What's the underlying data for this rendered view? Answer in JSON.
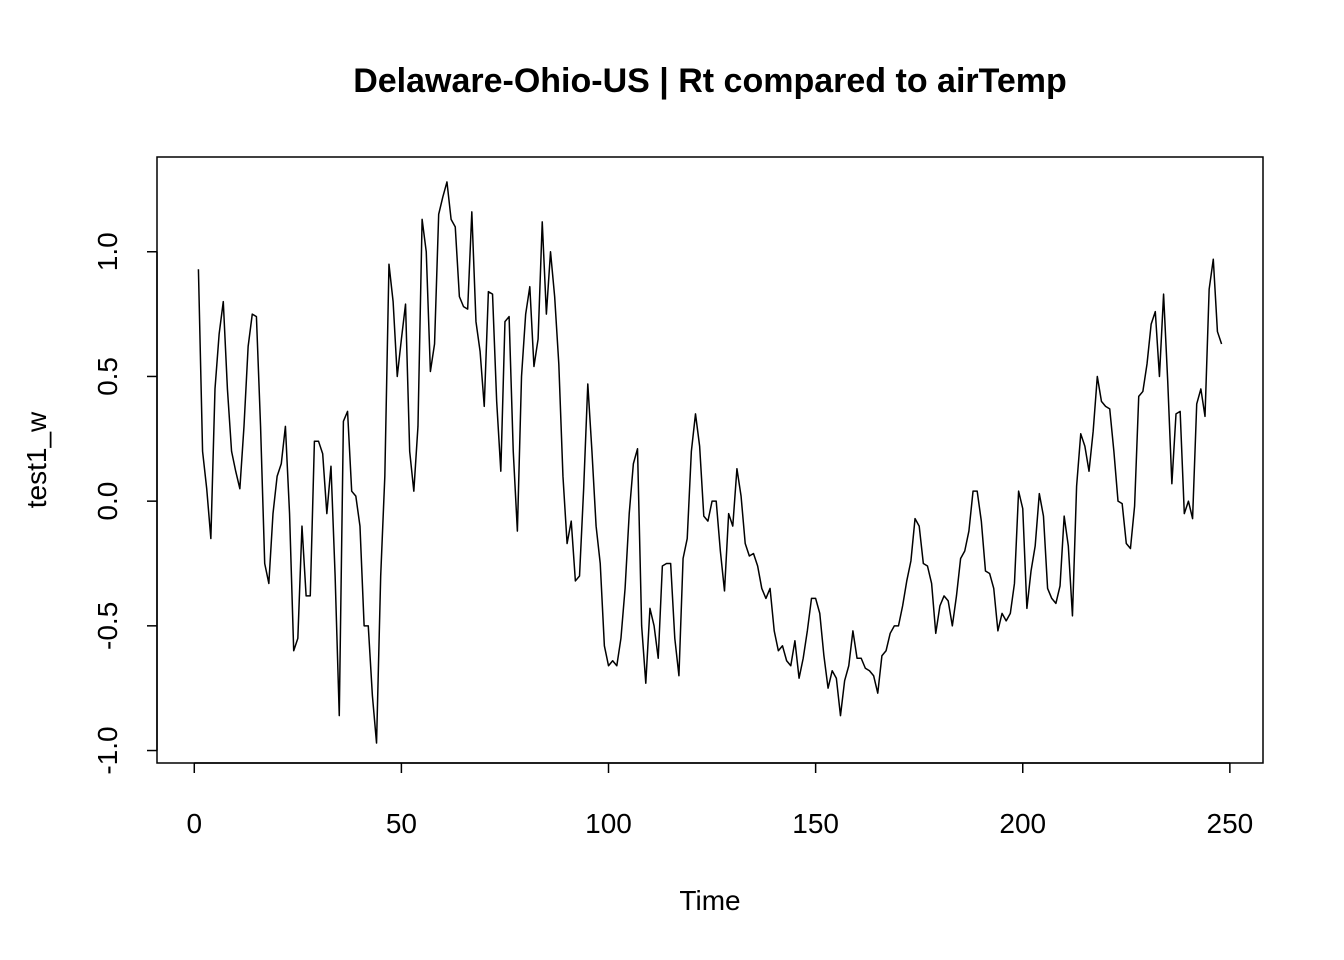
{
  "chart_data": {
    "type": "line",
    "title": "Delaware-Ohio-US | Rt compared to airTemp",
    "xlabel": "Time",
    "ylabel": "test1_w",
    "xlim": [
      -9,
      258
    ],
    "ylim": [
      -1.05,
      1.38
    ],
    "x_ticks": [
      0,
      50,
      100,
      150,
      200,
      250
    ],
    "y_ticks": [
      -1.0,
      -0.5,
      0.0,
      0.5,
      1.0
    ],
    "x_tick_labels": [
      "0",
      "50",
      "100",
      "150",
      "200",
      "250"
    ],
    "y_tick_labels": [
      "-1.0",
      "-0.5",
      "0.0",
      "0.5",
      "1.0"
    ],
    "grid": false,
    "legend": "none",
    "line_color": "#000000",
    "x_start": 1,
    "series": [
      {
        "values": [
          0.93,
          0.2,
          0.05,
          -0.15,
          0.45,
          0.67,
          0.8,
          0.45,
          0.2,
          0.12,
          0.05,
          0.3,
          0.62,
          0.75,
          0.74,
          0.3,
          -0.25,
          -0.33,
          -0.05,
          0.1,
          0.15,
          0.3,
          -0.05,
          -0.6,
          -0.55,
          -0.1,
          -0.38,
          -0.38,
          0.24,
          0.24,
          0.19,
          -0.05,
          0.14,
          -0.3,
          -0.86,
          0.32,
          0.36,
          0.04,
          0.02,
          -0.1,
          -0.5,
          -0.5,
          -0.78,
          -0.97,
          -0.3,
          0.1,
          0.95,
          0.8,
          0.5,
          0.65,
          0.79,
          0.2,
          0.04,
          0.3,
          1.13,
          1.0,
          0.52,
          0.63,
          1.15,
          1.22,
          1.28,
          1.13,
          1.1,
          0.82,
          0.78,
          0.77,
          1.16,
          0.72,
          0.6,
          0.38,
          0.84,
          0.83,
          0.4,
          0.12,
          0.72,
          0.74,
          0.2,
          -0.12,
          0.5,
          0.75,
          0.86,
          0.54,
          0.65,
          1.12,
          0.75,
          1.0,
          0.82,
          0.55,
          0.1,
          -0.17,
          -0.08,
          -0.32,
          -0.3,
          0.05,
          0.47,
          0.2,
          -0.1,
          -0.25,
          -0.58,
          -0.66,
          -0.64,
          -0.66,
          -0.55,
          -0.35,
          -0.05,
          0.15,
          0.21,
          -0.5,
          -0.73,
          -0.43,
          -0.5,
          -0.63,
          -0.26,
          -0.25,
          -0.25,
          -0.55,
          -0.7,
          -0.23,
          -0.15,
          0.2,
          0.35,
          0.22,
          -0.06,
          -0.08,
          0.0,
          0.0,
          -0.2,
          -0.36,
          -0.05,
          -0.1,
          0.13,
          0.02,
          -0.17,
          -0.22,
          -0.21,
          -0.26,
          -0.35,
          -0.39,
          -0.35,
          -0.52,
          -0.6,
          -0.58,
          -0.64,
          -0.66,
          -0.56,
          -0.71,
          -0.63,
          -0.52,
          -0.39,
          -0.39,
          -0.45,
          -0.62,
          -0.75,
          -0.68,
          -0.71,
          -0.86,
          -0.72,
          -0.66,
          -0.52,
          -0.63,
          -0.63,
          -0.67,
          -0.68,
          -0.7,
          -0.77,
          -0.62,
          -0.6,
          -0.53,
          -0.5,
          -0.5,
          -0.42,
          -0.32,
          -0.24,
          -0.07,
          -0.1,
          -0.25,
          -0.26,
          -0.33,
          -0.53,
          -0.42,
          -0.38,
          -0.4,
          -0.5,
          -0.38,
          -0.23,
          -0.2,
          -0.12,
          0.04,
          0.04,
          -0.08,
          -0.28,
          -0.29,
          -0.35,
          -0.52,
          -0.45,
          -0.48,
          -0.45,
          -0.33,
          0.04,
          -0.03,
          -0.43,
          -0.28,
          -0.18,
          0.03,
          -0.06,
          -0.35,
          -0.39,
          -0.41,
          -0.34,
          -0.06,
          -0.18,
          -0.46,
          0.06,
          0.27,
          0.22,
          0.12,
          0.28,
          0.5,
          0.4,
          0.38,
          0.37,
          0.2,
          0.0,
          -0.01,
          -0.17,
          -0.19,
          -0.02,
          0.42,
          0.44,
          0.55,
          0.71,
          0.76,
          0.5,
          0.83,
          0.48,
          0.07,
          0.35,
          0.36,
          -0.05,
          0.0,
          -0.07,
          0.39,
          0.45,
          0.34,
          0.85,
          0.97,
          0.68,
          0.63
        ]
      }
    ]
  }
}
